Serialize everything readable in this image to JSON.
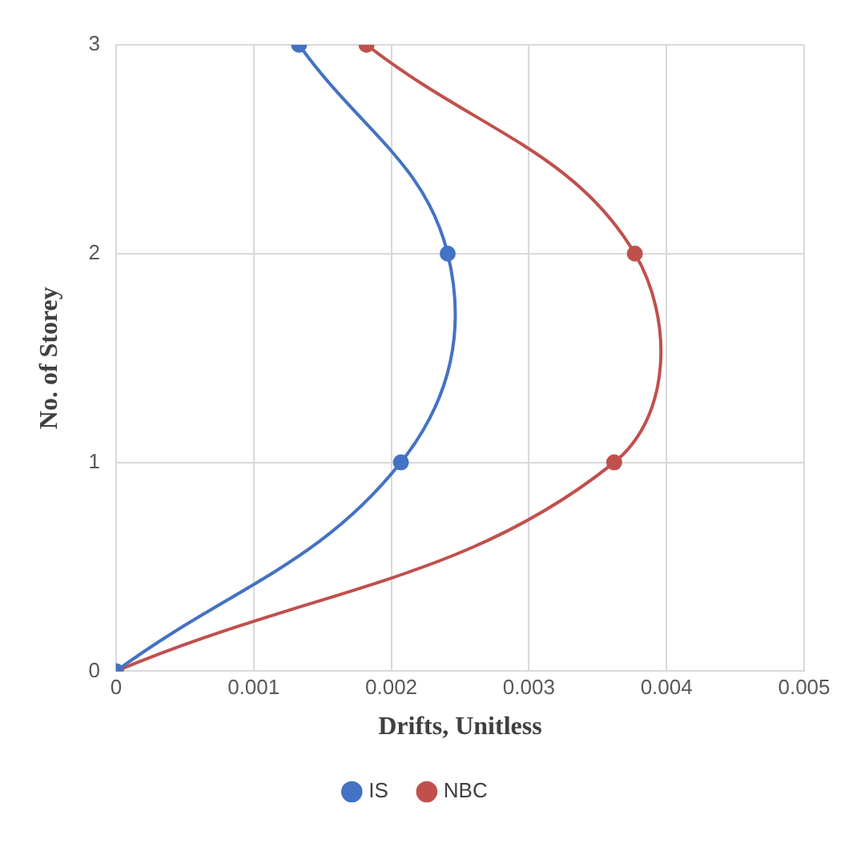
{
  "chart_data": {
    "type": "line",
    "xlabel": "Drifts, Unitless",
    "ylabel": "No. of Storey",
    "series": [
      {
        "name": "IS",
        "color": "#4472c4",
        "x": [
          0,
          0.00207,
          0.00241,
          0.00133
        ],
        "values": [
          0,
          1,
          2,
          3
        ]
      },
      {
        "name": "NBC",
        "color": "#c0504d",
        "x": [
          0,
          0.00362,
          0.00377,
          0.00182
        ],
        "values": [
          0,
          1,
          2,
          3
        ]
      }
    ],
    "xlim": [
      0,
      0.005
    ],
    "xticks": [
      0,
      0.001,
      0.002,
      0.003,
      0.004,
      0.005
    ],
    "ylim": [
      0,
      3
    ],
    "yticks": [
      0,
      1,
      2,
      3
    ],
    "grid": true,
    "legend": "bottom",
    "marker": "circle",
    "line_style": "solid"
  }
}
